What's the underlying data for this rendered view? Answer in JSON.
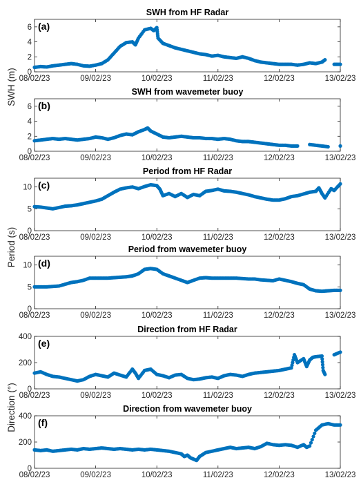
{
  "figure": {
    "dot_color": "#0072BD",
    "x_ticks": [
      "08/02/23",
      "09/02/23",
      "10/02/23",
      "11/02/23",
      "12/02/23",
      "13/02/23"
    ]
  },
  "y_axis_labels": [
    {
      "text": "SWH (m)",
      "panels": [
        "a",
        "b"
      ]
    },
    {
      "text": "Period (s)",
      "panels": [
        "c",
        "d"
      ]
    },
    {
      "text": "Direction (°)",
      "panels": [
        "e",
        "f"
      ]
    }
  ],
  "chart_data": [
    {
      "id": "a",
      "panel_label": "(a)",
      "type": "scatter",
      "title": "SWH from HF Radar",
      "xlabel": "",
      "ylabel": "SWH (m)",
      "x_unit": "days since 08/02/23",
      "xlim": [
        0,
        5
      ],
      "ylim": [
        0,
        7
      ],
      "yticks": [
        0,
        2,
        4,
        6
      ],
      "points": [
        [
          0.0,
          0.6
        ],
        [
          0.1,
          0.7
        ],
        [
          0.2,
          0.65
        ],
        [
          0.3,
          0.8
        ],
        [
          0.4,
          0.9
        ],
        [
          0.5,
          1.0
        ],
        [
          0.6,
          1.1
        ],
        [
          0.7,
          1.0
        ],
        [
          0.8,
          0.8
        ],
        [
          0.9,
          0.75
        ],
        [
          1.0,
          0.9
        ],
        [
          1.1,
          1.1
        ],
        [
          1.2,
          1.6
        ],
        [
          1.3,
          2.5
        ],
        [
          1.4,
          3.4
        ],
        [
          1.5,
          3.9
        ],
        [
          1.6,
          4.0
        ],
        [
          1.65,
          3.6
        ],
        [
          1.7,
          4.5
        ],
        [
          1.8,
          5.6
        ],
        [
          1.9,
          5.8
        ],
        [
          1.95,
          5.5
        ],
        [
          2.0,
          5.9
        ],
        [
          2.02,
          4.5
        ],
        [
          2.1,
          3.8
        ],
        [
          2.2,
          3.5
        ],
        [
          2.3,
          3.2
        ],
        [
          2.4,
          3.0
        ],
        [
          2.5,
          2.8
        ],
        [
          2.6,
          2.6
        ],
        [
          2.7,
          2.4
        ],
        [
          2.8,
          2.3
        ],
        [
          2.9,
          2.1
        ],
        [
          3.0,
          2.2
        ],
        [
          3.1,
          2.0
        ],
        [
          3.2,
          1.9
        ],
        [
          3.3,
          1.8
        ],
        [
          3.4,
          2.0
        ],
        [
          3.5,
          1.8
        ],
        [
          3.6,
          1.5
        ],
        [
          3.7,
          1.3
        ],
        [
          3.8,
          1.2
        ],
        [
          3.9,
          1.1
        ],
        [
          4.0,
          1.0
        ],
        [
          4.1,
          1.0
        ],
        [
          4.2,
          1.0
        ],
        [
          4.3,
          0.9
        ],
        [
          4.4,
          1.0
        ],
        [
          4.5,
          1.2
        ],
        [
          4.6,
          1.1
        ],
        [
          4.7,
          1.3
        ],
        [
          4.75,
          1.6
        ],
        [
          4.9,
          1.0
        ],
        [
          5.0,
          1.0
        ]
      ]
    },
    {
      "id": "b",
      "panel_label": "(b)",
      "type": "scatter",
      "title": "SWH from wavemeter buoy",
      "xlabel": "",
      "ylabel": "SWH (m)",
      "x_unit": "days since 08/02/23",
      "xlim": [
        0,
        5
      ],
      "ylim": [
        0,
        7
      ],
      "yticks": [
        0,
        2,
        4,
        6
      ],
      "points": [
        [
          0.0,
          1.4
        ],
        [
          0.1,
          1.5
        ],
        [
          0.2,
          1.6
        ],
        [
          0.3,
          1.7
        ],
        [
          0.4,
          1.6
        ],
        [
          0.5,
          1.7
        ],
        [
          0.6,
          1.6
        ],
        [
          0.7,
          1.5
        ],
        [
          0.8,
          1.6
        ],
        [
          0.9,
          1.7
        ],
        [
          1.0,
          1.9
        ],
        [
          1.1,
          1.8
        ],
        [
          1.2,
          1.6
        ],
        [
          1.3,
          1.8
        ],
        [
          1.4,
          2.1
        ],
        [
          1.5,
          2.3
        ],
        [
          1.6,
          2.2
        ],
        [
          1.7,
          2.6
        ],
        [
          1.8,
          2.9
        ],
        [
          1.85,
          3.1
        ],
        [
          1.9,
          2.7
        ],
        [
          2.0,
          2.3
        ],
        [
          2.1,
          1.9
        ],
        [
          2.2,
          1.8
        ],
        [
          2.3,
          1.9
        ],
        [
          2.4,
          2.0
        ],
        [
          2.5,
          1.9
        ],
        [
          2.6,
          1.8
        ],
        [
          2.7,
          1.8
        ],
        [
          2.8,
          1.7
        ],
        [
          2.9,
          1.7
        ],
        [
          3.0,
          1.6
        ],
        [
          3.1,
          1.7
        ],
        [
          3.2,
          1.6
        ],
        [
          3.3,
          1.4
        ],
        [
          3.4,
          1.3
        ],
        [
          3.5,
          1.3
        ],
        [
          3.6,
          1.2
        ],
        [
          3.7,
          1.1
        ],
        [
          3.8,
          1.0
        ],
        [
          3.9,
          0.9
        ],
        [
          4.0,
          0.8
        ],
        [
          4.1,
          0.8
        ],
        [
          4.2,
          0.7
        ],
        [
          4.3,
          0.7
        ],
        [
          4.5,
          0.9
        ],
        [
          4.6,
          0.8
        ],
        [
          4.7,
          0.7
        ],
        [
          4.8,
          0.6
        ],
        [
          5.0,
          0.7
        ]
      ]
    },
    {
      "id": "c",
      "panel_label": "(c)",
      "type": "scatter",
      "title": "Period from HF Radar",
      "xlabel": "",
      "ylabel": "Period (s)",
      "x_unit": "days since 08/02/23",
      "xlim": [
        0,
        5
      ],
      "ylim": [
        0,
        12
      ],
      "yticks": [
        0,
        5,
        10
      ],
      "points": [
        [
          0.0,
          5.5
        ],
        [
          0.1,
          5.4
        ],
        [
          0.2,
          5.2
        ],
        [
          0.3,
          5.0
        ],
        [
          0.4,
          5.3
        ],
        [
          0.5,
          5.6
        ],
        [
          0.6,
          5.7
        ],
        [
          0.7,
          5.9
        ],
        [
          0.8,
          6.2
        ],
        [
          0.9,
          6.5
        ],
        [
          1.0,
          6.8
        ],
        [
          1.1,
          7.2
        ],
        [
          1.2,
          8.0
        ],
        [
          1.3,
          8.8
        ],
        [
          1.4,
          9.5
        ],
        [
          1.5,
          9.8
        ],
        [
          1.6,
          10.0
        ],
        [
          1.7,
          9.6
        ],
        [
          1.8,
          10.1
        ],
        [
          1.9,
          10.5
        ],
        [
          2.0,
          10.3
        ],
        [
          2.05,
          9.5
        ],
        [
          2.1,
          8.0
        ],
        [
          2.2,
          8.5
        ],
        [
          2.3,
          7.8
        ],
        [
          2.4,
          8.5
        ],
        [
          2.5,
          7.6
        ],
        [
          2.6,
          8.3
        ],
        [
          2.7,
          8.0
        ],
        [
          2.8,
          9.0
        ],
        [
          2.9,
          9.2
        ],
        [
          3.0,
          9.5
        ],
        [
          3.1,
          9.1
        ],
        [
          3.2,
          9.0
        ],
        [
          3.3,
          8.8
        ],
        [
          3.4,
          8.5
        ],
        [
          3.5,
          8.2
        ],
        [
          3.6,
          7.8
        ],
        [
          3.7,
          7.5
        ],
        [
          3.8,
          7.2
        ],
        [
          3.9,
          7.0
        ],
        [
          4.0,
          7.0
        ],
        [
          4.1,
          7.3
        ],
        [
          4.2,
          7.8
        ],
        [
          4.3,
          8.0
        ],
        [
          4.4,
          8.4
        ],
        [
          4.5,
          8.8
        ],
        [
          4.6,
          9.0
        ],
        [
          4.65,
          9.8
        ],
        [
          4.7,
          8.5
        ],
        [
          4.75,
          7.5
        ],
        [
          4.85,
          9.6
        ],
        [
          4.9,
          9.2
        ],
        [
          5.0,
          10.7
        ]
      ]
    },
    {
      "id": "d",
      "panel_label": "(d)",
      "type": "scatter",
      "title": "Period from wavemeter buoy",
      "xlabel": "",
      "ylabel": "Period (s)",
      "x_unit": "days since 08/02/23",
      "xlim": [
        0,
        5
      ],
      "ylim": [
        0,
        12
      ],
      "yticks": [
        0,
        5,
        10
      ],
      "points": [
        [
          0.0,
          5.0
        ],
        [
          0.1,
          5.0
        ],
        [
          0.2,
          5.0
        ],
        [
          0.3,
          5.1
        ],
        [
          0.4,
          5.2
        ],
        [
          0.5,
          5.6
        ],
        [
          0.6,
          6.0
        ],
        [
          0.7,
          6.2
        ],
        [
          0.8,
          6.5
        ],
        [
          0.9,
          7.0
        ],
        [
          1.0,
          7.0
        ],
        [
          1.1,
          7.0
        ],
        [
          1.2,
          7.0
        ],
        [
          1.3,
          7.1
        ],
        [
          1.4,
          7.2
        ],
        [
          1.5,
          7.3
        ],
        [
          1.6,
          7.5
        ],
        [
          1.7,
          8.0
        ],
        [
          1.8,
          9.0
        ],
        [
          1.9,
          9.2
        ],
        [
          2.0,
          9.0
        ],
        [
          2.1,
          8.0
        ],
        [
          2.2,
          7.5
        ],
        [
          2.3,
          7.0
        ],
        [
          2.4,
          6.5
        ],
        [
          2.5,
          6.0
        ],
        [
          2.6,
          6.5
        ],
        [
          2.7,
          7.0
        ],
        [
          2.8,
          7.1
        ],
        [
          2.9,
          7.0
        ],
        [
          3.0,
          7.0
        ],
        [
          3.1,
          7.0
        ],
        [
          3.2,
          7.0
        ],
        [
          3.3,
          7.0
        ],
        [
          3.4,
          6.9
        ],
        [
          3.5,
          6.8
        ],
        [
          3.6,
          6.8
        ],
        [
          3.7,
          6.6
        ],
        [
          3.8,
          6.5
        ],
        [
          3.9,
          6.4
        ],
        [
          4.0,
          6.8
        ],
        [
          4.1,
          6.5
        ],
        [
          4.2,
          6.2
        ],
        [
          4.3,
          5.8
        ],
        [
          4.4,
          5.5
        ],
        [
          4.5,
          4.5
        ],
        [
          4.6,
          4.1
        ],
        [
          4.7,
          4.0
        ],
        [
          4.8,
          4.1
        ],
        [
          4.9,
          4.2
        ],
        [
          5.0,
          4.2
        ]
      ]
    },
    {
      "id": "e",
      "panel_label": "(e)",
      "type": "scatter",
      "title": "Direction from HF Radar",
      "xlabel": "",
      "ylabel": "Direction (°)",
      "x_unit": "days since 08/02/23",
      "xlim": [
        0,
        5
      ],
      "ylim": [
        0,
        400
      ],
      "yticks": [
        0,
        200,
        400
      ],
      "points": [
        [
          0.0,
          120
        ],
        [
          0.1,
          130
        ],
        [
          0.2,
          110
        ],
        [
          0.3,
          95
        ],
        [
          0.4,
          90
        ],
        [
          0.5,
          80
        ],
        [
          0.6,
          70
        ],
        [
          0.7,
          60
        ],
        [
          0.8,
          70
        ],
        [
          0.9,
          95
        ],
        [
          1.0,
          110
        ],
        [
          1.1,
          100
        ],
        [
          1.2,
          90
        ],
        [
          1.3,
          120
        ],
        [
          1.4,
          105
        ],
        [
          1.5,
          90
        ],
        [
          1.6,
          150
        ],
        [
          1.65,
          120
        ],
        [
          1.7,
          80
        ],
        [
          1.8,
          140
        ],
        [
          1.9,
          150
        ],
        [
          2.0,
          110
        ],
        [
          2.1,
          100
        ],
        [
          2.2,
          85
        ],
        [
          2.3,
          105
        ],
        [
          2.4,
          110
        ],
        [
          2.5,
          80
        ],
        [
          2.6,
          70
        ],
        [
          2.7,
          75
        ],
        [
          2.8,
          85
        ],
        [
          2.9,
          90
        ],
        [
          3.0,
          80
        ],
        [
          3.1,
          100
        ],
        [
          3.2,
          110
        ],
        [
          3.3,
          105
        ],
        [
          3.4,
          95
        ],
        [
          3.5,
          110
        ],
        [
          3.6,
          120
        ],
        [
          3.7,
          125
        ],
        [
          3.8,
          130
        ],
        [
          3.9,
          135
        ],
        [
          4.0,
          140
        ],
        [
          4.1,
          150
        ],
        [
          4.2,
          160
        ],
        [
          4.25,
          260
        ],
        [
          4.3,
          200
        ],
        [
          4.4,
          230
        ],
        [
          4.45,
          170
        ],
        [
          4.5,
          220
        ],
        [
          4.55,
          240
        ],
        [
          4.6,
          245
        ],
        [
          4.7,
          250
        ],
        [
          4.72,
          140
        ],
        [
          4.75,
          110
        ],
        [
          4.9,
          260
        ],
        [
          5.0,
          280
        ]
      ]
    },
    {
      "id": "f",
      "panel_label": "(f)",
      "type": "scatter",
      "title": "Direction from wavemeter buoy",
      "xlabel": "",
      "ylabel": "Direction (°)",
      "x_unit": "days since 08/02/23",
      "xlim": [
        0,
        5
      ],
      "ylim": [
        0,
        400
      ],
      "yticks": [
        0,
        200,
        400
      ],
      "points": [
        [
          0.0,
          140
        ],
        [
          0.1,
          135
        ],
        [
          0.2,
          140
        ],
        [
          0.3,
          130
        ],
        [
          0.4,
          135
        ],
        [
          0.5,
          140
        ],
        [
          0.6,
          145
        ],
        [
          0.7,
          140
        ],
        [
          0.8,
          150
        ],
        [
          0.9,
          145
        ],
        [
          1.0,
          150
        ],
        [
          1.1,
          155
        ],
        [
          1.2,
          150
        ],
        [
          1.3,
          145
        ],
        [
          1.4,
          150
        ],
        [
          1.5,
          145
        ],
        [
          1.6,
          140
        ],
        [
          1.7,
          145
        ],
        [
          1.8,
          140
        ],
        [
          1.9,
          145
        ],
        [
          2.0,
          140
        ],
        [
          2.1,
          135
        ],
        [
          2.2,
          130
        ],
        [
          2.3,
          120
        ],
        [
          2.4,
          110
        ],
        [
          2.45,
          90
        ],
        [
          2.5,
          100
        ],
        [
          2.55,
          80
        ],
        [
          2.6,
          70
        ],
        [
          2.65,
          60
        ],
        [
          2.7,
          90
        ],
        [
          2.8,
          120
        ],
        [
          2.9,
          130
        ],
        [
          3.0,
          140
        ],
        [
          3.1,
          150
        ],
        [
          3.2,
          160
        ],
        [
          3.3,
          150
        ],
        [
          3.4,
          155
        ],
        [
          3.5,
          160
        ],
        [
          3.6,
          150
        ],
        [
          3.7,
          165
        ],
        [
          3.8,
          190
        ],
        [
          3.9,
          180
        ],
        [
          4.0,
          175
        ],
        [
          4.1,
          180
        ],
        [
          4.2,
          175
        ],
        [
          4.3,
          160
        ],
        [
          4.4,
          180
        ],
        [
          4.45,
          160
        ],
        [
          4.5,
          170
        ],
        [
          4.6,
          290
        ],
        [
          4.7,
          330
        ],
        [
          4.8,
          340
        ],
        [
          4.9,
          330
        ],
        [
          5.0,
          330
        ]
      ]
    }
  ]
}
